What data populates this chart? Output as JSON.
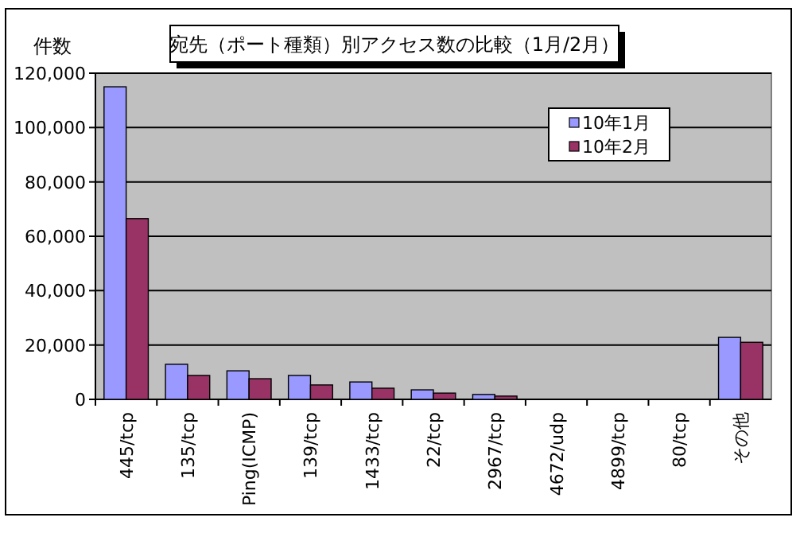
{
  "chart_data": {
    "type": "bar",
    "title": "宛先（ポート種類）別アクセス数の比較（1月/2月）",
    "ylabel": "件数",
    "categories": [
      "445/tcp",
      "135/tcp",
      "Ping(ICMP)",
      "139/tcp",
      "1433/tcp",
      "22/tcp",
      "2967/tcp",
      "4672/udp",
      "4899/tcp",
      "80/tcp",
      "その他"
    ],
    "series": [
      {
        "name": "10年1月",
        "color": "#9999ff",
        "values": [
          115000,
          12900,
          10500,
          8800,
          6400,
          3500,
          1800,
          null,
          null,
          null,
          22800
        ]
      },
      {
        "name": "10年2月",
        "color": "#993366",
        "values": [
          66500,
          8800,
          7600,
          5300,
          4100,
          2300,
          1200,
          null,
          null,
          null,
          21000
        ]
      }
    ],
    "ylim": [
      0,
      120000
    ],
    "yticks": [
      {
        "value": 0,
        "label": "0"
      },
      {
        "value": 20000,
        "label": "20,000"
      },
      {
        "value": 40000,
        "label": "40,000"
      },
      {
        "value": 60000,
        "label": "60,000"
      },
      {
        "value": 80000,
        "label": "80,000"
      },
      {
        "value": 100000,
        "label": "100,000"
      },
      {
        "value": 120000,
        "label": "120,000"
      }
    ],
    "grid": "y",
    "legend": "top right"
  }
}
